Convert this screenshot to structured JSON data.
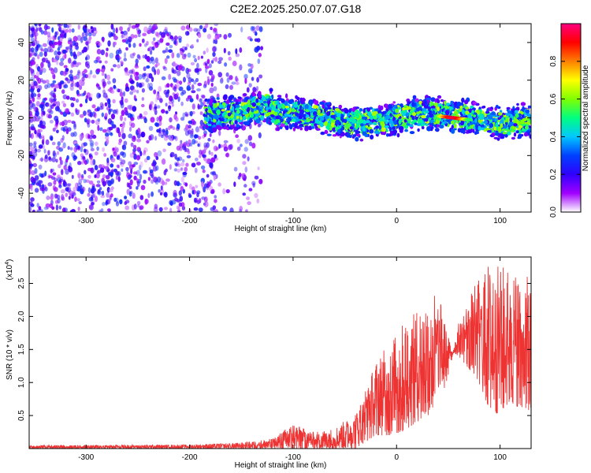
{
  "figure_title": "C2E2.2025.250.07.07.G18",
  "chart_data": [
    {
      "type": "heatmap",
      "title": "C2E2.2025.250.07.07.G18",
      "xlabel": "Height of straight line (km)",
      "ylabel": "Frequency (Hz)",
      "xlim": [
        -355,
        130
      ],
      "ylim": [
        -50,
        50
      ],
      "x_ticks": [
        -300,
        -200,
        -100,
        0,
        100
      ],
      "y_ticks": [
        -40,
        -20,
        0,
        20,
        40
      ],
      "x_tick_labels": [
        "-300",
        "-200",
        "-100",
        "0",
        "100"
      ],
      "y_tick_labels": [
        "-40",
        "-20",
        "0",
        "20",
        "40"
      ],
      "colorbar": {
        "label": "Normalized spectral amplitude",
        "range": [
          0,
          1
        ],
        "ticks": [
          0.0,
          0.2,
          0.4,
          0.6,
          0.8
        ],
        "tick_labels": [
          "0.0",
          "0.2",
          "0.4",
          "0.6",
          "0.8"
        ],
        "colormap": [
          "#ffffff",
          "#a000ff",
          "#3000ff",
          "#0040ff",
          "#00c8ff",
          "#00ff80",
          "#80ff00",
          "#ffff00",
          "#ff8000",
          "#ff0000",
          "#ff0080"
        ]
      },
      "regions": [
        {
          "name": "diffuse-noise",
          "x_range": [
            -355,
            -130
          ],
          "freq_range": [
            -50,
            50
          ],
          "typical_amplitude": 0.15
        },
        {
          "name": "signal-track",
          "x_range": [
            -185,
            130
          ],
          "center_freq_hz": 0,
          "half_width_hz": 8,
          "typical_amplitude": 0.35
        },
        {
          "name": "peak-streak",
          "x_range": [
            40,
            70
          ],
          "center_freq_hz": -1,
          "amplitude": 0.95
        }
      ]
    },
    {
      "type": "line",
      "xlabel": "Height of straight line (km)",
      "ylabel": "SNR (10 * v/v)",
      "y_scale_label": "(x10",
      "y_scale_exponent": "4",
      "y_scale_suffix": ")",
      "xlim": [
        -355,
        130
      ],
      "ylim": [
        0,
        29000
      ],
      "x_ticks": [
        -300,
        -200,
        -100,
        0,
        100
      ],
      "y_ticks": [
        5000,
        10000,
        15000,
        20000,
        25000
      ],
      "x_tick_labels": [
        "-300",
        "-200",
        "-100",
        "0",
        "100"
      ],
      "y_tick_labels": [
        "0.5",
        "1.0",
        "1.5",
        "2.0",
        "2.5"
      ],
      "color": "#ee3333",
      "envelope": {
        "x": [
          -355,
          -200,
          -150,
          -120,
          -100,
          -80,
          -60,
          -40,
          -20,
          0,
          20,
          40,
          50,
          55,
          60,
          70,
          80,
          90,
          100,
          110,
          120,
          130
        ],
        "min": [
          0,
          0,
          0,
          0,
          0,
          0,
          0,
          0,
          2000,
          2000,
          4000,
          6000,
          11000,
          14500,
          14000,
          12000,
          9000,
          6000,
          5000,
          7000,
          6000,
          5000
        ],
        "max": [
          500,
          600,
          900,
          1500,
          3800,
          2500,
          3000,
          5500,
          13000,
          18000,
          21000,
          24000,
          17000,
          15000,
          19000,
          23000,
          26000,
          28500,
          28000,
          27000,
          26000,
          26000
        ]
      }
    }
  ]
}
